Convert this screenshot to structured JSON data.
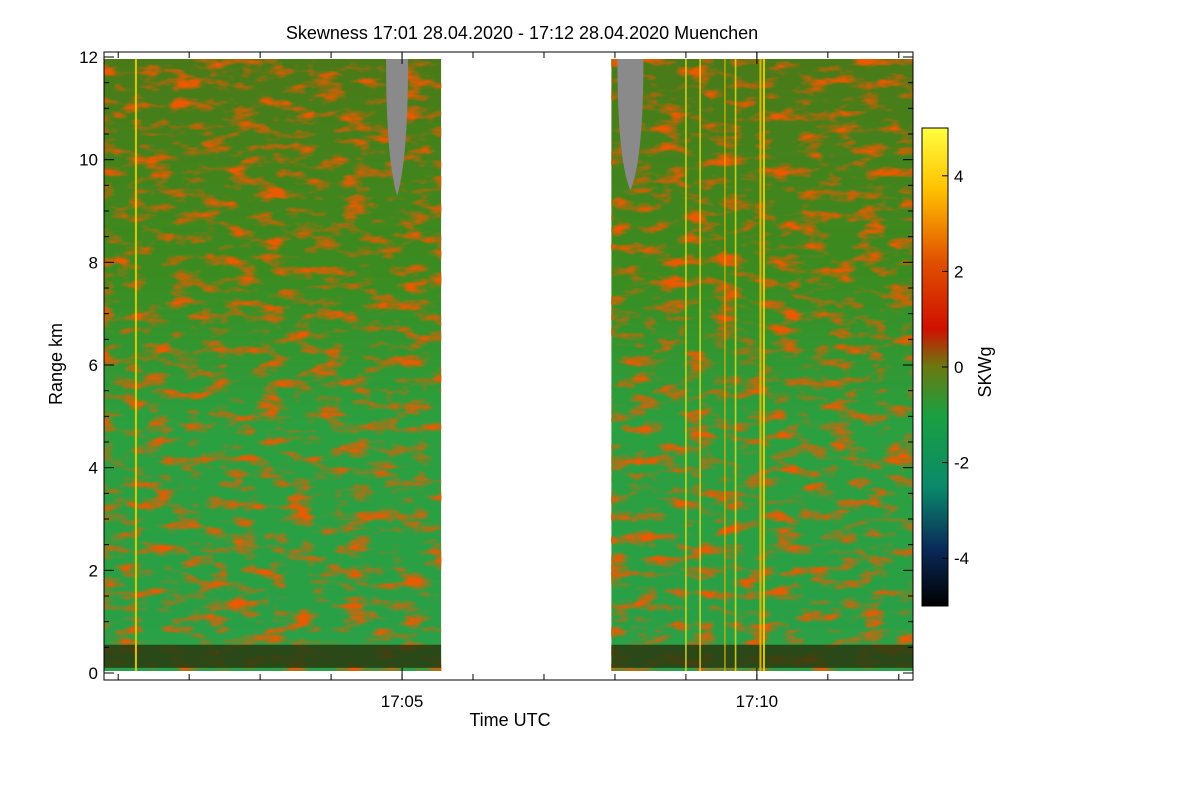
{
  "chart_data": {
    "type": "heatmap",
    "title": "Skewness   17:01 28.04.2020 - 17:12 28.04.2020 Muenchen",
    "xlabel": "Time UTC",
    "ylabel": "Range km",
    "xlim_minutes_utc": [
      1020.8,
      1032.2
    ],
    "ylim_km": [
      0,
      12
    ],
    "x_tick_labels": [
      {
        "label": "17:05",
        "minute": 1025
      },
      {
        "label": "17:10",
        "minute": 1030
      }
    ],
    "x_minor_tick_minutes": [
      1021,
      1022,
      1023,
      1024,
      1025,
      1026,
      1027,
      1028,
      1029,
      1030,
      1031,
      1032
    ],
    "y_ticks": [
      {
        "label": "0",
        "value": 0
      },
      {
        "label": "2",
        "value": 2
      },
      {
        "label": "4",
        "value": 4
      },
      {
        "label": "6",
        "value": 6
      },
      {
        "label": "8",
        "value": 8
      },
      {
        "label": "10",
        "value": 10
      },
      {
        "label": "12",
        "value": 12
      }
    ],
    "colorbar": {
      "label": "SKWg",
      "range": [
        -5,
        5
      ],
      "ticks": [
        {
          "label": "4",
          "value": 4
        },
        {
          "label": "2",
          "value": 2
        },
        {
          "label": "0",
          "value": 0
        },
        {
          "label": "-2",
          "value": -2
        },
        {
          "label": "-4",
          "value": -4
        }
      ],
      "colors": [
        "#000000",
        "#0a2a5a",
        "#0a8a6a",
        "#1aa040",
        "#6a7a10",
        "#d01000",
        "#e06000",
        "#ffe000",
        "#ffff40"
      ]
    },
    "data_segments": [
      {
        "start_minute": 1020.8,
        "end_minute": 1025.55
      },
      {
        "start_minute": 1027.95,
        "end_minute": 1032.2
      }
    ],
    "no_data_gap": {
      "start_minute": 1025.55,
      "end_minute": 1027.95
    }
  }
}
